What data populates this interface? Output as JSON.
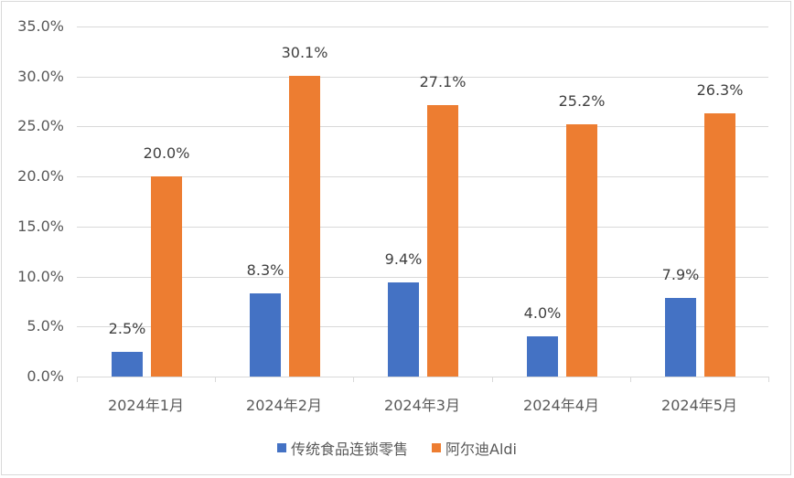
{
  "chart_data": {
    "type": "bar",
    "title": "",
    "xlabel": "",
    "ylabel": "",
    "ylim": [
      0,
      35
    ],
    "yticks": [
      "0.0%",
      "5.0%",
      "10.0%",
      "15.0%",
      "20.0%",
      "25.0%",
      "30.0%",
      "35.0%"
    ],
    "categories": [
      "2024年1月",
      "2024年2月",
      "2024年3月",
      "2024年4月",
      "2024年5月"
    ],
    "series": [
      {
        "name": "传统食品连锁零售",
        "color": "#4472c4",
        "values": [
          2.5,
          8.3,
          9.4,
          4.0,
          7.9
        ],
        "labels": [
          "2.5%",
          "8.3%",
          "9.4%",
          "4.0%",
          "7.9%"
        ]
      },
      {
        "name": "阿尔迪Aldi",
        "color": "#ed7d31",
        "values": [
          20.0,
          30.1,
          27.1,
          25.2,
          26.3
        ],
        "labels": [
          "20.0%",
          "30.1%",
          "27.1%",
          "25.2%",
          "26.3%"
        ]
      }
    ],
    "grid": true,
    "legend_position": "bottom"
  }
}
